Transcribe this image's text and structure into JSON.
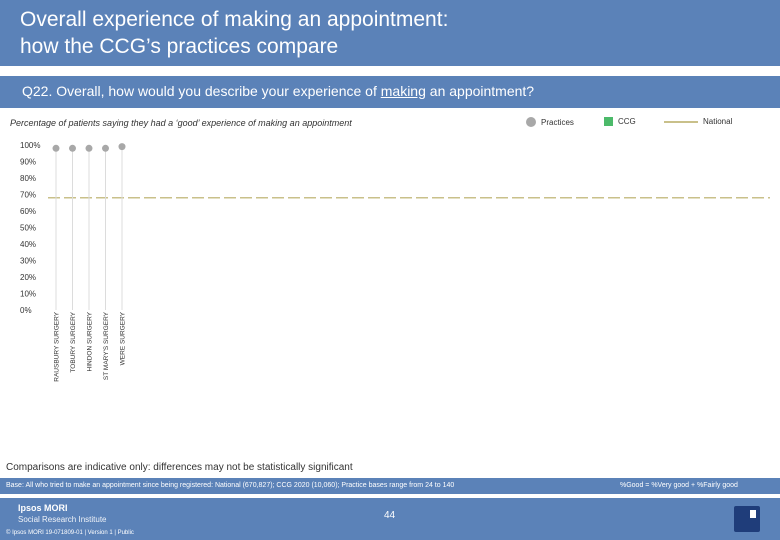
{
  "header": {
    "title_line1": "Overall experience of making an appointment:",
    "title_line2": "how the CCG’s practices compare"
  },
  "question": {
    "prefix": "Q22. Overall, how would you describe your experience of ",
    "underlined": "making",
    "suffix": " an appointment?"
  },
  "subtitle": "Percentage of patients saying they had a ‘good’ experience of making an appointment",
  "legend": {
    "practices": "Practices",
    "ccg": "CCG",
    "national": "National"
  },
  "colors": {
    "brand": "#5b82b8",
    "practices": "#a8a8a8",
    "ccg": "#4cba6a",
    "national": "#c9c08a"
  },
  "chart_data": {
    "type": "scatter",
    "categories": [
      "RAUSBURY SURGERY",
      "TOBURY SURGERY",
      "HINDON SURGERY",
      "ST MARY'S SURGERY",
      "WERE SURGERY"
    ],
    "series": [
      {
        "name": "Practices",
        "values": [
          98,
          98,
          98,
          98,
          99
        ]
      }
    ],
    "national": 68,
    "yticks": [
      "100%",
      "90%",
      "80%",
      "70%",
      "60%",
      "50%",
      "40%",
      "30%",
      "20%",
      "10%",
      "0%"
    ],
    "ylim": [
      0,
      100
    ],
    "title": "",
    "xlabel": "",
    "ylabel": "",
    "grid": false
  },
  "footer": {
    "note": "Comparisons are indicative only: differences may not be statistically significant",
    "base": "Base: All who tried to make an appointment since being registered: National (670,827); CCG 2020 (10,060); Practice bases range from 24 to 140",
    "formula": "%Good = %Very good + %Fairly good",
    "logo_name": "Ipsos MORI",
    "logo_sub": "Social Research Institute",
    "copyright": "© Ipsos MORI     19-071809-01 | Version 1 | Public",
    "page_number": "44"
  }
}
